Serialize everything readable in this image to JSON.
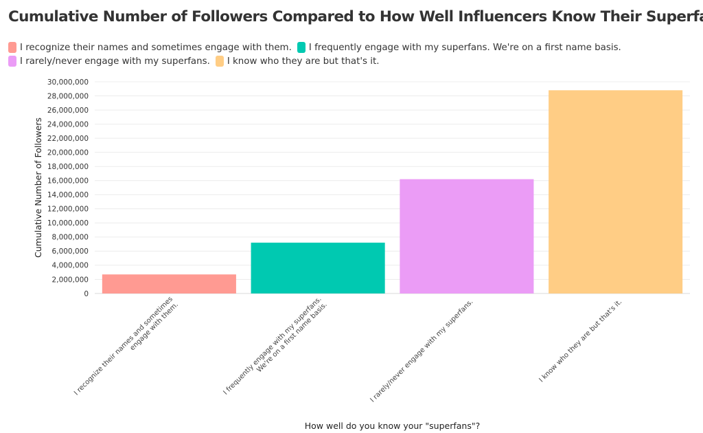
{
  "chart_data": {
    "type": "bar",
    "title": "Cumulative Number of Followers Compared to How Well Influencers Know Their Superfans",
    "xlabel": "How well do you know your \"superfans\"?",
    "ylabel": "Cumulative Number of Followers",
    "ylim": [
      0,
      30000000
    ],
    "y_ticks": [
      0,
      2000000,
      4000000,
      6000000,
      8000000,
      10000000,
      12000000,
      14000000,
      16000000,
      18000000,
      20000000,
      22000000,
      24000000,
      26000000,
      28000000,
      30000000
    ],
    "y_tick_labels": [
      "0",
      "2,000,000",
      "4,000,000",
      "6,000,000",
      "8,000,000",
      "10,000,000",
      "12,000,000",
      "14,000,000",
      "16,000,000",
      "18,000,000",
      "20,000,000",
      "22,000,000",
      "24,000,000",
      "26,000,000",
      "28,000,000",
      "30,000,000"
    ],
    "grid": true,
    "legend_position": "top",
    "categories": [
      {
        "name": "I recognize their names and sometimes engage with them.",
        "tick_lines": [
          "I recognize their names and sometimes",
          "engage with them."
        ],
        "value": 2700000,
        "color": "#ff9a92"
      },
      {
        "name": "I frequently engage with my superfans. We're on a first name basis.",
        "tick_lines": [
          "I frequently engage with my superfans.",
          "We're on a first name basis."
        ],
        "value": 7200000,
        "color": "#00c9b1"
      },
      {
        "name": "I rarely/never engage with my superfans.",
        "tick_lines": [
          "I rarely/never engage with my superfans."
        ],
        "value": 16200000,
        "color": "#eb9cf6"
      },
      {
        "name": "I know who they are but that's it.",
        "tick_lines": [
          "I know who they are but that's it."
        ],
        "value": 28800000,
        "color": "#ffcd85"
      }
    ],
    "legend": [
      {
        "label": "I recognize their names and sometimes engage with them.",
        "color": "#ff9a92"
      },
      {
        "label": "I frequently engage with my superfans. We're on a first name basis.",
        "color": "#00c9b1"
      },
      {
        "label": "I rarely/never engage with my superfans.",
        "color": "#eb9cf6"
      },
      {
        "label": "I know who they are but that's it.",
        "color": "#ffcd85"
      }
    ]
  }
}
